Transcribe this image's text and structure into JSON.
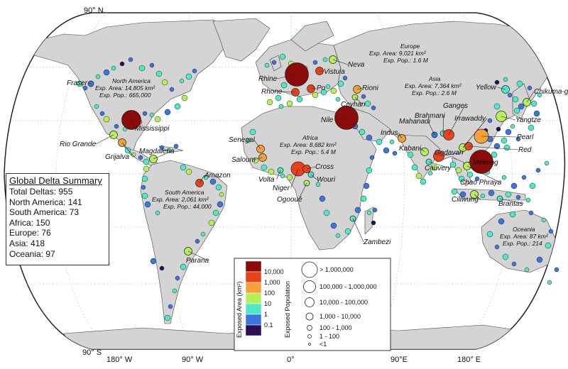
{
  "axes": {
    "north": "90° N",
    "south": "90° S",
    "longitudes": [
      "180° W",
      "90° W",
      "0°",
      "90°E",
      "180° E"
    ]
  },
  "summary": {
    "title": "Global Delta Summary",
    "rows": [
      "Total Deltas: 955",
      "North America: 141",
      "South America: 73",
      "Africa: 150",
      "Europe: 76",
      "Asia: 418",
      "Oceania: 97"
    ]
  },
  "regions": {
    "north_america": {
      "name": "North America",
      "area": "Exp. Area: 14,805 km²",
      "pop": "Exp. Pop.: 665,000"
    },
    "south_america": {
      "name": "South America",
      "area": "Exp. Area: 2,061 km²",
      "pop": "Exp. Pop.: 44,000"
    },
    "europe": {
      "name": "Europe",
      "area": "Exp. Area: 9,021 km²",
      "pop": "Exp. Pop.: 1.6 M"
    },
    "africa": {
      "name": "Africa",
      "area": "Exp. Area: 8,682 km²",
      "pop": "Exp. Pop.: 5.4 M"
    },
    "asia": {
      "name": "Asia",
      "area": "Exp. Area: 7,364 km²",
      "pop": "Exp. Pop.: 2.6 M"
    },
    "oceania": {
      "name": "Oceania",
      "area": "Exp. Area: 87 km²",
      "pop": "Exp. Pop.: 214"
    }
  },
  "deltas": [
    "Fraser",
    "Rio Grande",
    "Mississippi",
    "Grijalva",
    "Magdalena",
    "Amazon",
    "Parana",
    "Rhine",
    "Rhone",
    "Po",
    "Vistula",
    "Neva",
    "Rioni",
    "Ceyhan",
    "Nile",
    "Senegal",
    "Saloum",
    "Volta",
    "Niger",
    "Cross",
    "Wouri",
    "Ogooué",
    "Zambezi",
    "Indus",
    "Mahanadi",
    "Brahmani",
    "Ganges",
    "Irrawaddy",
    "Kabani",
    "Godavari",
    "Cauvery",
    "Chao Phraya",
    "Mekong",
    "Ciliwung",
    "Brantas",
    "Yellow",
    "Yangtze",
    "Pearl",
    "Red",
    "Chikuma-gawa"
  ],
  "legend": {
    "area_title": "Exposed Area (km²)",
    "area_classes": [
      "10,000",
      "1,000",
      "100",
      "10",
      "1",
      "0.1"
    ],
    "area_colors": [
      "#8b0a0a",
      "#e8421b",
      "#f4a13a",
      "#b5f05a",
      "#4fe8c8",
      "#3b76e0",
      "#2a0d55"
    ],
    "pop_title": "Exposed Population",
    "pop_classes": [
      "> 1,000,000",
      "100,000 - 1,000,000",
      "10,000 - 100,000",
      "1,000 - 10,000",
      "100 - 1,000",
      "1 - 100",
      "<1"
    ]
  },
  "colors": {
    "land": "#d4d4d4",
    "ocean": "#ffffff",
    "frame": "#222222"
  }
}
